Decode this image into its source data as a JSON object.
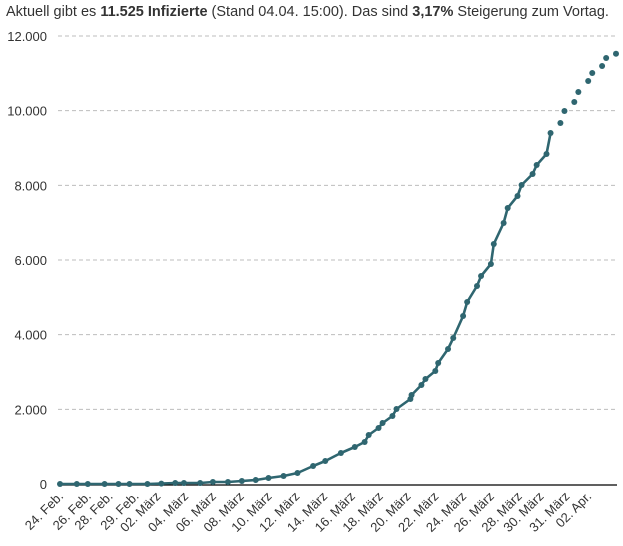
{
  "headline": {
    "prefix": "Aktuell gibt es ",
    "count": "11.525 Infizierte",
    "middle": " (Stand 04.04. 15:00). Das sind ",
    "percent": "3,17%",
    "suffix": " Steigerung zum Vortag."
  },
  "chart_data": {
    "type": "line",
    "title": "",
    "xlabel": "",
    "ylabel": "",
    "ylim": [
      0,
      12000
    ],
    "yticks": [
      0,
      2000,
      4000,
      6000,
      8000,
      10000,
      12000
    ],
    "ytick_labels": [
      "0",
      "2.000",
      "4.000",
      "6.000",
      "8.000",
      "10.000",
      "12.000"
    ],
    "xticks": [
      {
        "date": "24.02.",
        "label": "24. Feb."
      },
      {
        "date": "26.02.",
        "label": "26. Feb."
      },
      {
        "date": "28.02.",
        "label": "28. Feb."
      },
      {
        "date": "29.02.",
        "label": "29. Feb."
      },
      {
        "date": "02.03.",
        "label": "02. März"
      },
      {
        "date": "04.03.",
        "label": "04. März"
      },
      {
        "date": "06.03.",
        "label": "06. März"
      },
      {
        "date": "08.03.",
        "label": "08. März"
      },
      {
        "date": "10.03.",
        "label": "10. März"
      },
      {
        "date": "12.03.",
        "label": "12. März"
      },
      {
        "date": "14.03.",
        "label": "14. März"
      },
      {
        "date": "16.03.",
        "label": "16. März"
      },
      {
        "date": "18.03.",
        "label": "18. März"
      },
      {
        "date": "20.03.",
        "label": "20. März"
      },
      {
        "date": "22.03.",
        "label": "22. März"
      },
      {
        "date": "24.03.",
        "label": "24. März"
      },
      {
        "date": "26.03.",
        "label": "26. März"
      },
      {
        "date": "28.03.",
        "label": "28. März"
      },
      {
        "date": "30.03.",
        "label": "30. März"
      },
      {
        "date": "31.03.",
        "label": "31. März"
      },
      {
        "date": "02.04.",
        "label": "02. Apr."
      }
    ],
    "grid": {
      "horizontal": true,
      "style": "dashed"
    },
    "color": "#2f6670",
    "series": [
      {
        "style": "line-with-markers",
        "points": [
          [
            "24.02. 00:00",
            0
          ],
          [
            "25.02. 05:00",
            0
          ],
          [
            "26.02. 00:00",
            0
          ],
          [
            "27.02. 05:00",
            0
          ],
          [
            "28.02. 05:00",
            0
          ],
          [
            "29.02. 00:00",
            0
          ],
          [
            "01.03. 07:00",
            0
          ],
          [
            "02.03. 07:00",
            10
          ],
          [
            "03.03. 07:00",
            27
          ],
          [
            "03.03. 22:00",
            27
          ],
          [
            "05.03. 02:00",
            27
          ],
          [
            "06.03. 00:00",
            54
          ],
          [
            "07.03. 02:00",
            54
          ],
          [
            "08.03. 02:00",
            80
          ],
          [
            "09.03. 02:00",
            107
          ],
          [
            "10.03. 00:00",
            160
          ],
          [
            "11.03. 02:00",
            214
          ],
          [
            "12.03. 02:00",
            295
          ],
          [
            "13.03. 05:00",
            482
          ],
          [
            "14.03. 02:00",
            616
          ],
          [
            "15.03. 05:00",
            830
          ],
          [
            "16.03. 05:00",
            991
          ],
          [
            "16.03. 22:00",
            1125
          ],
          [
            "17.03. 05:00",
            1312
          ],
          [
            "17.03. 22:00",
            1500
          ],
          [
            "18.03. 05:00",
            1634
          ],
          [
            "18.03. 22:00",
            1821
          ],
          [
            "19.03. 05:00",
            2009
          ],
          [
            "20.03. 05:00",
            2277
          ],
          [
            "20.03. 07:00",
            2384
          ],
          [
            "21.03. 00:00",
            2652
          ],
          [
            "21.03. 07:00",
            2813
          ],
          [
            "22.03. 00:00",
            3027
          ],
          [
            "22.03. 05:00",
            3241
          ],
          [
            "22.03. 22:00",
            3616
          ],
          [
            "23.03. 07:00",
            3911
          ],
          [
            "24.03. 00:00",
            4500
          ],
          [
            "24.03. 07:00",
            4875
          ],
          [
            "25.03. 00:00",
            5304
          ],
          [
            "25.03. 07:00",
            5571
          ],
          [
            "26.03. 00:00",
            5893
          ],
          [
            "26.03. 05:00",
            6429
          ],
          [
            "26.03. 22:00",
            6991
          ],
          [
            "27.03. 05:00",
            7393
          ],
          [
            "27.03. 22:00",
            7714
          ],
          [
            "28.03. 05:00",
            8009
          ],
          [
            "29.03. 00:00",
            8304
          ],
          [
            "29.03. 07:00",
            8545
          ],
          [
            "30.03. 00:00",
            8839
          ],
          [
            "30.03. 07:00",
            9402
          ]
        ]
      },
      {
        "style": "markers-only",
        "points": [
          [
            "31.03. 00:00",
            9670
          ],
          [
            "31.03. 07:00",
            9991
          ],
          [
            "01.04. 00:00",
            10232
          ],
          [
            "01.04. 07:00",
            10500
          ],
          [
            "02.04. 00:00",
            10795
          ],
          [
            "02.04. 07:00",
            11009
          ],
          [
            "03.04. 00:00",
            11196
          ],
          [
            "03.04. 07:00",
            11411
          ],
          [
            "04.04. 00:00",
            11525
          ]
        ]
      }
    ]
  }
}
